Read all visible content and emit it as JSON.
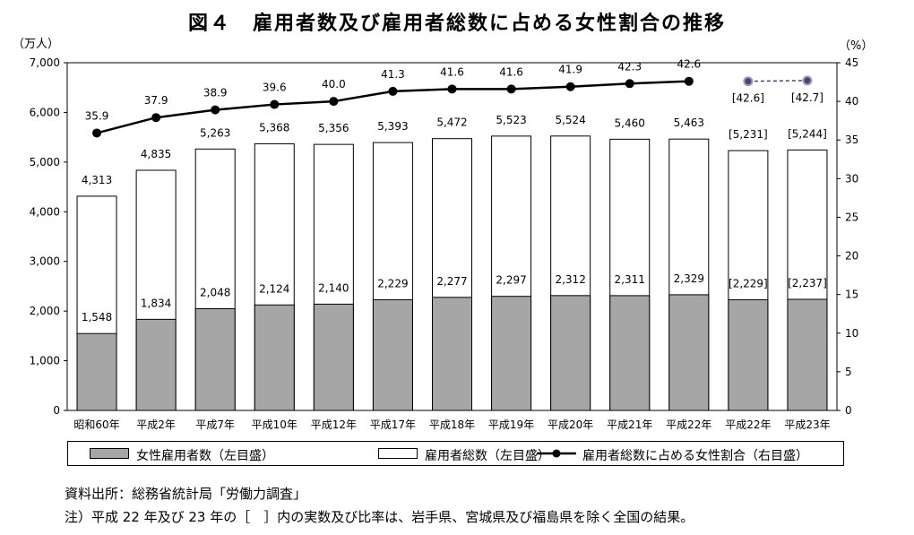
{
  "title": "図４　雇用者数及び雇用者総数に占める女性割合の推移",
  "left_unit": "（万人）",
  "right_unit": "（%）",
  "legend": {
    "female": "女性雇用者数（左目盛）",
    "total": "雇用者総数（左目盛）",
    "ratio": "雇用者総数に占める女性割合（右目盛）"
  },
  "notes": {
    "source": "資料出所：総務省統計局「労働力調査」",
    "remark": "注）平成 22 年及び 23 年の［　］内の実数及び比率は、岩手県、宮城県及び福島県を除く全国の結果。"
  },
  "colors": {
    "female_bar": "#a6a6a6",
    "total_bar": "#ffffff",
    "line": "#000000",
    "excluded_marker": "#4b4470"
  },
  "chart_data": {
    "type": "bar",
    "categories": [
      "昭和60年",
      "平成2年",
      "平成7年",
      "平成10年",
      "平成12年",
      "平成17年",
      "平成18年",
      "平成19年",
      "平成20年",
      "平成21年",
      "平成22年",
      "平成22年",
      "平成23年"
    ],
    "series": [
      {
        "name": "女性雇用者数（左目盛）",
        "values": [
          1548,
          1834,
          2048,
          2124,
          2140,
          2229,
          2277,
          2297,
          2312,
          2311,
          2329,
          2229,
          2237
        ],
        "labels": [
          "1,548",
          "1,834",
          "2,048",
          "2,124",
          "2,140",
          "2,229",
          "2,277",
          "2,297",
          "2,312",
          "2,311",
          "2,329",
          "[2,229]",
          "[2,237]"
        ]
      },
      {
        "name": "雇用者総数（左目盛）",
        "values": [
          4313,
          4835,
          5263,
          5368,
          5356,
          5393,
          5472,
          5523,
          5524,
          5460,
          5463,
          5231,
          5244
        ],
        "labels": [
          "4,313",
          "4,835",
          "5,263",
          "5,368",
          "5,356",
          "5,393",
          "5,472",
          "5,523",
          "5,524",
          "5,460",
          "5,463",
          "[5,231]",
          "[5,244]"
        ]
      },
      {
        "name": "雇用者総数に占める女性割合（右目盛）",
        "values": [
          35.9,
          37.9,
          38.9,
          39.6,
          40.0,
          41.3,
          41.6,
          41.6,
          41.9,
          42.3,
          42.6,
          42.6,
          42.7
        ],
        "labels": [
          "35.9",
          "37.9",
          "38.9",
          "39.6",
          "40.0",
          "41.3",
          "41.6",
          "41.6",
          "41.9",
          "42.3",
          "42.6",
          "[42.6]",
          "[42.7]"
        ]
      }
    ],
    "ylim_left": [
      0,
      7000
    ],
    "yticks_left": [
      "0",
      "1,000",
      "2,000",
      "3,000",
      "4,000",
      "5,000",
      "6,000",
      "7,000"
    ],
    "ylim_right": [
      0,
      45
    ],
    "yticks_right": [
      "0",
      "5",
      "10",
      "15",
      "20",
      "25",
      "30",
      "35",
      "40",
      "45"
    ],
    "grid": false,
    "legend_position": "bottom"
  }
}
